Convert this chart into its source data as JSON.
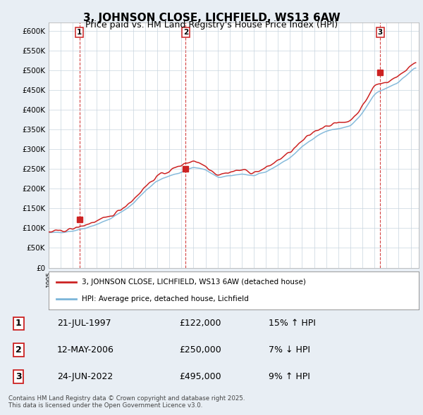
{
  "title": "3, JOHNSON CLOSE, LICHFIELD, WS13 6AW",
  "subtitle": "Price paid vs. HM Land Registry's House Price Index (HPI)",
  "title_fontsize": 11,
  "subtitle_fontsize": 9,
  "ylim": [
    0,
    620000
  ],
  "yticks": [
    0,
    50000,
    100000,
    150000,
    200000,
    250000,
    300000,
    350000,
    400000,
    450000,
    500000,
    550000,
    600000
  ],
  "ytick_labels": [
    "£0",
    "£50K",
    "£100K",
    "£150K",
    "£200K",
    "£250K",
    "£300K",
    "£350K",
    "£400K",
    "£450K",
    "£500K",
    "£550K",
    "£600K"
  ],
  "background_color": "#e8eef4",
  "plot_bg_color": "#ffffff",
  "grid_color": "#c8d4de",
  "hpi_color": "#7ab4d8",
  "price_color": "#cc2222",
  "legend_label_price": "3, JOHNSON CLOSE, LICHFIELD, WS13 6AW (detached house)",
  "legend_label_hpi": "HPI: Average price, detached house, Lichfield",
  "sale_dates": [
    "1997-07-21",
    "2006-05-12",
    "2022-06-24"
  ],
  "sale_prices": [
    122000,
    250000,
    495000
  ],
  "sale_labels": [
    "1",
    "2",
    "3"
  ],
  "footer": "Contains HM Land Registry data © Crown copyright and database right 2025.\nThis data is licensed under the Open Government Licence v3.0.",
  "hpi_anchors_year": [
    1995.0,
    1996.0,
    1997.0,
    1998.0,
    1999.0,
    2000.0,
    2001.0,
    2002.0,
    2003.0,
    2004.0,
    2005.0,
    2006.0,
    2007.0,
    2008.0,
    2009.0,
    2010.0,
    2011.0,
    2012.0,
    2013.0,
    2014.0,
    2015.0,
    2016.0,
    2017.0,
    2018.0,
    2019.0,
    2020.0,
    2021.0,
    2022.0,
    2023.0,
    2024.0,
    2025.5
  ],
  "hpi_anchors_val": [
    88000,
    90000,
    93000,
    100000,
    110000,
    122000,
    140000,
    162000,
    195000,
    220000,
    232000,
    242000,
    255000,
    248000,
    228000,
    232000,
    238000,
    232000,
    242000,
    260000,
    278000,
    306000,
    330000,
    346000,
    352000,
    358000,
    390000,
    440000,
    455000,
    470000,
    510000
  ],
  "price_anchors_year": [
    1995.0,
    1996.0,
    1997.0,
    1998.0,
    1999.0,
    2000.0,
    2001.0,
    2002.0,
    2003.0,
    2004.0,
    2005.0,
    2006.0,
    2007.0,
    2008.0,
    2009.0,
    2010.0,
    2011.0,
    2012.0,
    2013.0,
    2014.0,
    2015.0,
    2016.0,
    2017.0,
    2018.0,
    2019.0,
    2020.0,
    2021.0,
    2022.0,
    2023.0,
    2024.0,
    2025.5
  ],
  "price_anchors_val": [
    90000,
    93000,
    98000,
    108000,
    118000,
    128000,
    148000,
    172000,
    205000,
    232000,
    245000,
    260000,
    272000,
    258000,
    235000,
    242000,
    248000,
    240000,
    252000,
    272000,
    292000,
    320000,
    345000,
    360000,
    366000,
    372000,
    408000,
    462000,
    470000,
    485000,
    525000
  ]
}
